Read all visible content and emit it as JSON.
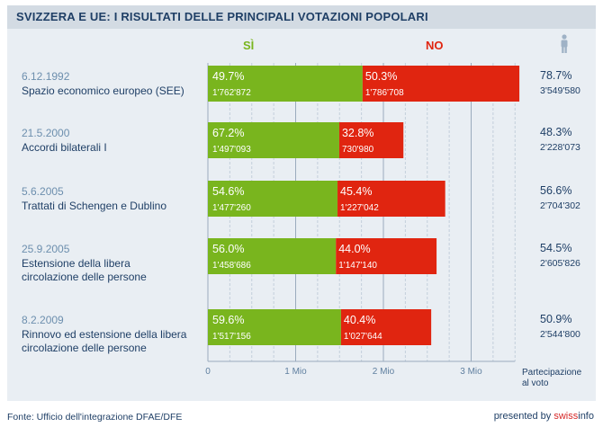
{
  "header": {
    "title": "SVIZZERA E UE: I RISULTATI DELLE PRINCIPALI VOTAZIONI POPOLARI"
  },
  "columns": {
    "yes_label": "SÌ",
    "no_label": "NO"
  },
  "colors": {
    "yes": "#79b51e",
    "no": "#e02510",
    "header_bg": "#d3dbe3",
    "panel_bg": "#e9eef3",
    "text": "#1f3f66",
    "date": "#6d8fae"
  },
  "icons": {
    "participation": "person-icon"
  },
  "chart_data": {
    "type": "bar",
    "stacked": true,
    "orientation": "horizontal",
    "categories": [
      {
        "date": "6.12.1992",
        "title": "Spazio economico europeo (SEE)"
      },
      {
        "date": "21.5.2000",
        "title": "Accordi bilaterali I"
      },
      {
        "date": "5.6.2005",
        "title": "Trattati di Schengen e Dublino"
      },
      {
        "date": "25.9.2005",
        "title": "Estensione della libera\ncircolazione delle persone"
      },
      {
        "date": "8.2.2009",
        "title": "Rinnovo ed estensione della libera\ncircolazione delle persone"
      }
    ],
    "series": [
      {
        "name": "SÌ",
        "values": [
          1762872,
          1497093,
          1477260,
          1458686,
          1517156
        ],
        "pct_labels": [
          "49.7%",
          "67.2%",
          "54.6%",
          "56.0%",
          "59.6%"
        ],
        "vote_labels": [
          "1'762'872",
          "1'497'093",
          "1'477'260",
          "1'458'686",
          "1'517'156"
        ]
      },
      {
        "name": "NO",
        "values": [
          1786708,
          730980,
          1227042,
          1147140,
          1027644
        ],
        "pct_labels": [
          "50.3%",
          "32.8%",
          "45.4%",
          "44.0%",
          "40.4%"
        ],
        "vote_labels": [
          "1'786'708",
          "730'980",
          "1'227'042",
          "1'147'140",
          "1'027'644"
        ]
      }
    ],
    "participation": {
      "label": "Partecipazione\nal voto",
      "pct": [
        "78.7%",
        "48.3%",
        "56.6%",
        "54.5%",
        "50.9%"
      ],
      "votes": [
        "3'549'580",
        "2'228'073",
        "2'704'302",
        "2'605'826",
        "2'544'800"
      ]
    },
    "x_ticks": [
      {
        "value": 0,
        "label": "0"
      },
      {
        "value": 1000000,
        "label": "1 Mio"
      },
      {
        "value": 2000000,
        "label": "2 Mio"
      },
      {
        "value": 3000000,
        "label": "3 Mio"
      }
    ],
    "xlim": [
      0,
      3500000
    ],
    "grid": true
  },
  "footer": {
    "source": "Fonte: Ufficio dell'integrazione DFAE/DFE",
    "presented_by": "presented by",
    "brand": "swiss",
    "brand_suffix": "info"
  }
}
